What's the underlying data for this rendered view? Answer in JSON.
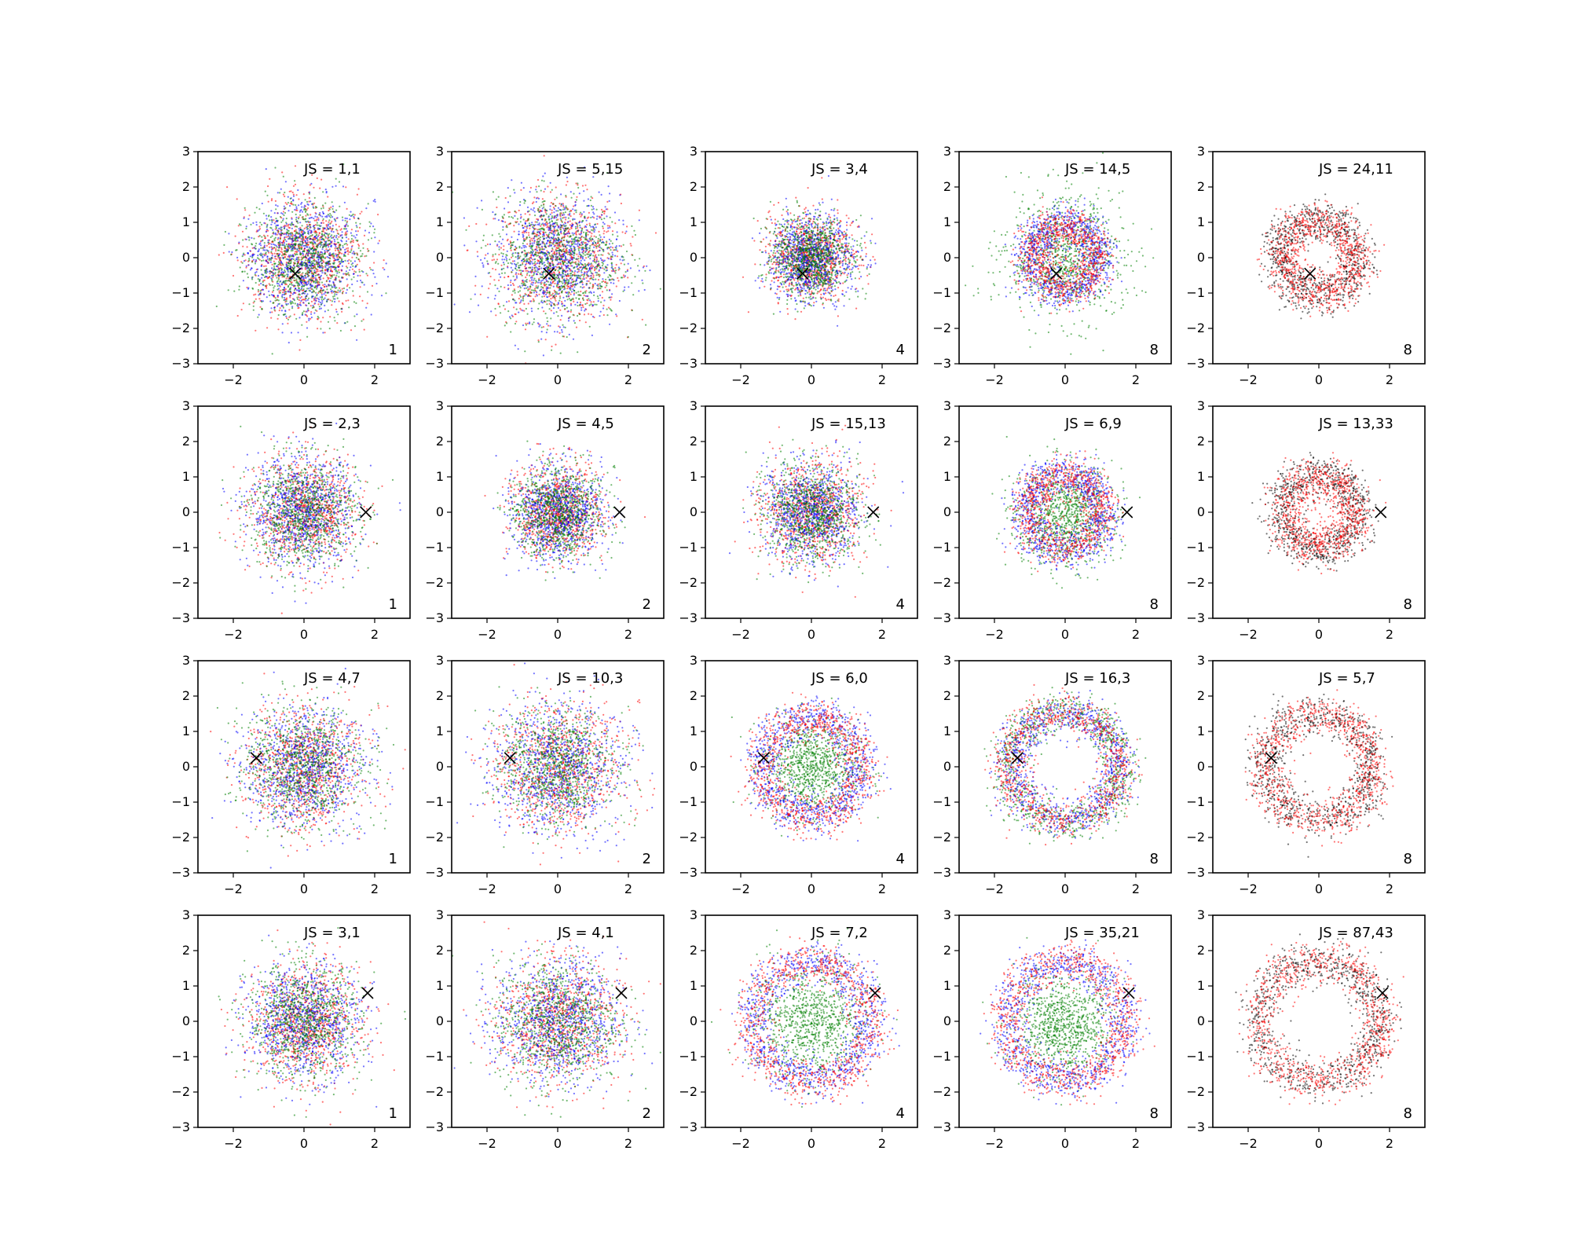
{
  "figure": {
    "rows": 4,
    "cols": 5,
    "xlim": [
      -3,
      3
    ],
    "ylim": [
      -3,
      3
    ],
    "xticks": [
      -2,
      0,
      2
    ],
    "yticks": [
      -3,
      -2,
      -1,
      0,
      1,
      2,
      3
    ],
    "colors": {
      "red": "#ff0000",
      "blue": "#0000ff",
      "green": "#008000",
      "black": "#000000",
      "axis": "#000000",
      "background": "#ffffff"
    }
  },
  "chart_data": [
    {
      "type": "scatter",
      "row": 0,
      "col": 0,
      "label": "JS = 1,1",
      "k": "1",
      "marker_x": -0.25,
      "marker_y": -0.45,
      "xlim": [
        -3,
        3
      ],
      "ylim": [
        -3,
        3
      ],
      "pattern": "blob",
      "series": [
        {
          "color": "red",
          "radius": 1.0
        },
        {
          "color": "blue",
          "radius": 1.0
        },
        {
          "color": "green",
          "radius": 1.0
        }
      ]
    },
    {
      "type": "scatter",
      "row": 0,
      "col": 1,
      "label": "JS = 5,15",
      "k": "2",
      "marker_x": -0.25,
      "marker_y": -0.45,
      "xlim": [
        -3,
        3
      ],
      "ylim": [
        -3,
        3
      ],
      "pattern": "blob",
      "series": [
        {
          "color": "red",
          "radius": 1.1
        },
        {
          "color": "blue",
          "radius": 1.1
        },
        {
          "color": "green",
          "radius": 1.1
        }
      ]
    },
    {
      "type": "scatter",
      "row": 0,
      "col": 2,
      "label": "JS = 3,4",
      "k": "4",
      "marker_x": -0.25,
      "marker_y": -0.45,
      "xlim": [
        -3,
        3
      ],
      "ylim": [
        -3,
        3
      ],
      "pattern": "blob",
      "series": [
        {
          "color": "red",
          "radius": 0.75
        },
        {
          "color": "blue",
          "radius": 0.75
        },
        {
          "color": "green",
          "radius": 0.7
        }
      ]
    },
    {
      "type": "scatter",
      "row": 0,
      "col": 3,
      "label": "JS = 14,5",
      "k": "8",
      "marker_x": -0.25,
      "marker_y": -0.45,
      "xlim": [
        -3,
        3
      ],
      "ylim": [
        -3,
        3
      ],
      "pattern": "ring",
      "series": [
        {
          "color": "green",
          "radius": 1.2
        },
        {
          "color": "blue",
          "radius": 1.0
        },
        {
          "color": "red",
          "radius": 0.9
        }
      ]
    },
    {
      "type": "scatter",
      "row": 0,
      "col": 4,
      "label": "JS = 24,11",
      "k": "8",
      "marker_x": -0.25,
      "marker_y": -0.45,
      "xlim": [
        -3,
        3
      ],
      "ylim": [
        -3,
        3
      ],
      "pattern": "ring",
      "series": [
        {
          "color": "black",
          "radius": 1.1
        },
        {
          "color": "red",
          "radius": 1.05
        }
      ]
    },
    {
      "type": "scatter",
      "row": 1,
      "col": 0,
      "label": "JS = 2,3",
      "k": "1",
      "marker_x": 1.75,
      "marker_y": 0.0,
      "xlim": [
        -3,
        3
      ],
      "ylim": [
        -3,
        3
      ],
      "pattern": "blob",
      "series": [
        {
          "color": "red",
          "radius": 0.95
        },
        {
          "color": "blue",
          "radius": 0.95
        },
        {
          "color": "green",
          "radius": 0.95
        }
      ]
    },
    {
      "type": "scatter",
      "row": 1,
      "col": 1,
      "label": "JS = 4,5",
      "k": "2",
      "marker_x": 1.75,
      "marker_y": 0.0,
      "xlim": [
        -3,
        3
      ],
      "ylim": [
        -3,
        3
      ],
      "pattern": "blob",
      "series": [
        {
          "color": "red",
          "radius": 0.8
        },
        {
          "color": "blue",
          "radius": 0.8
        },
        {
          "color": "green",
          "radius": 0.8
        }
      ]
    },
    {
      "type": "scatter",
      "row": 1,
      "col": 2,
      "label": "JS = 15,13",
      "k": "4",
      "marker_x": 1.75,
      "marker_y": 0.0,
      "xlim": [
        -3,
        3
      ],
      "ylim": [
        -3,
        3
      ],
      "pattern": "blob",
      "series": [
        {
          "color": "red",
          "radius": 0.9
        },
        {
          "color": "blue",
          "radius": 0.85
        },
        {
          "color": "green",
          "radius": 0.85
        }
      ]
    },
    {
      "type": "scatter",
      "row": 1,
      "col": 3,
      "label": "JS = 6,9",
      "k": "8",
      "marker_x": 1.75,
      "marker_y": 0.0,
      "xlim": [
        -3,
        3
      ],
      "ylim": [
        -3,
        3
      ],
      "pattern": "arc",
      "series": [
        {
          "color": "green",
          "radius": 0.9
        },
        {
          "color": "blue",
          "radius": 1.1
        },
        {
          "color": "red",
          "radius": 1.05
        }
      ]
    },
    {
      "type": "scatter",
      "row": 1,
      "col": 4,
      "label": "JS = 13,33",
      "k": "8",
      "marker_x": 1.75,
      "marker_y": 0.0,
      "xlim": [
        -3,
        3
      ],
      "ylim": [
        -3,
        3
      ],
      "pattern": "arc",
      "series": [
        {
          "color": "black",
          "radius": 1.1
        },
        {
          "color": "red",
          "radius": 1.0
        }
      ]
    },
    {
      "type": "scatter",
      "row": 2,
      "col": 0,
      "label": "JS = 4,7",
      "k": "1",
      "marker_x": -1.35,
      "marker_y": 0.25,
      "xlim": [
        -3,
        3
      ],
      "ylim": [
        -3,
        3
      ],
      "pattern": "blob",
      "series": [
        {
          "color": "red",
          "radius": 1.05
        },
        {
          "color": "blue",
          "radius": 1.05
        },
        {
          "color": "green",
          "radius": 1.05
        }
      ]
    },
    {
      "type": "scatter",
      "row": 2,
      "col": 1,
      "label": "JS = 10,3",
      "k": "2",
      "marker_x": -1.35,
      "marker_y": 0.25,
      "xlim": [
        -3,
        3
      ],
      "ylim": [
        -3,
        3
      ],
      "pattern": "blob",
      "series": [
        {
          "color": "red",
          "radius": 1.15
        },
        {
          "color": "blue",
          "radius": 1.15
        },
        {
          "color": "green",
          "radius": 1.0
        }
      ]
    },
    {
      "type": "scatter",
      "row": 2,
      "col": 2,
      "label": "JS = 6,0",
      "k": "4",
      "marker_x": -1.35,
      "marker_y": 0.25,
      "xlim": [
        -3,
        3
      ],
      "ylim": [
        -3,
        3
      ],
      "pattern": "ring",
      "series": [
        {
          "color": "green",
          "radius": 0.95
        },
        {
          "color": "blue",
          "radius": 1.4
        },
        {
          "color": "red",
          "radius": 1.4
        }
      ]
    },
    {
      "type": "scatter",
      "row": 2,
      "col": 3,
      "label": "JS = 16,3",
      "k": "8",
      "marker_x": -1.35,
      "marker_y": 0.25,
      "xlim": [
        -3,
        3
      ],
      "ylim": [
        -3,
        3
      ],
      "pattern": "ring",
      "series": [
        {
          "color": "green",
          "radius": 1.6
        },
        {
          "color": "blue",
          "radius": 1.5
        },
        {
          "color": "red",
          "radius": 1.55
        }
      ]
    },
    {
      "type": "scatter",
      "row": 2,
      "col": 4,
      "label": "JS = 5,7",
      "k": "8",
      "marker_x": -1.35,
      "marker_y": 0.25,
      "xlim": [
        -3,
        3
      ],
      "ylim": [
        -3,
        3
      ],
      "pattern": "ring",
      "series": [
        {
          "color": "black",
          "radius": 1.5
        },
        {
          "color": "red",
          "radius": 1.5
        }
      ]
    },
    {
      "type": "scatter",
      "row": 3,
      "col": 0,
      "label": "JS = 3,1",
      "k": "1",
      "marker_x": 1.8,
      "marker_y": 0.8,
      "xlim": [
        -3,
        3
      ],
      "ylim": [
        -3,
        3
      ],
      "pattern": "blob",
      "series": [
        {
          "color": "red",
          "radius": 1.0
        },
        {
          "color": "blue",
          "radius": 1.0
        },
        {
          "color": "green",
          "radius": 1.0
        }
      ]
    },
    {
      "type": "scatter",
      "row": 3,
      "col": 1,
      "label": "JS = 4,1",
      "k": "2",
      "marker_x": 1.8,
      "marker_y": 0.8,
      "xlim": [
        -3,
        3
      ],
      "ylim": [
        -3,
        3
      ],
      "pattern": "blob",
      "series": [
        {
          "color": "red",
          "radius": 1.1
        },
        {
          "color": "blue",
          "radius": 1.1
        },
        {
          "color": "green",
          "radius": 1.1
        }
      ]
    },
    {
      "type": "scatter",
      "row": 3,
      "col": 2,
      "label": "JS = 7,2",
      "k": "4",
      "marker_x": 1.8,
      "marker_y": 0.8,
      "xlim": [
        -3,
        3
      ],
      "ylim": [
        -3,
        3
      ],
      "pattern": "ring",
      "series": [
        {
          "color": "green",
          "radius": 1.1
        },
        {
          "color": "blue",
          "radius": 1.65
        },
        {
          "color": "red",
          "radius": 1.7
        }
      ]
    },
    {
      "type": "scatter",
      "row": 3,
      "col": 3,
      "label": "JS = 35,21",
      "k": "8",
      "marker_x": 1.8,
      "marker_y": 0.8,
      "xlim": [
        -3,
        3
      ],
      "ylim": [
        -3,
        3
      ],
      "pattern": "arc",
      "series": [
        {
          "color": "green",
          "radius": 1.2
        },
        {
          "color": "blue",
          "radius": 1.65
        },
        {
          "color": "red",
          "radius": 1.7
        }
      ]
    },
    {
      "type": "scatter",
      "row": 3,
      "col": 4,
      "label": "JS = 87,43",
      "k": "8",
      "marker_x": 1.8,
      "marker_y": 0.8,
      "xlim": [
        -3,
        3
      ],
      "ylim": [
        -3,
        3
      ],
      "pattern": "arc",
      "series": [
        {
          "color": "black",
          "radius": 1.7
        },
        {
          "color": "red",
          "radius": 1.75
        }
      ]
    }
  ]
}
